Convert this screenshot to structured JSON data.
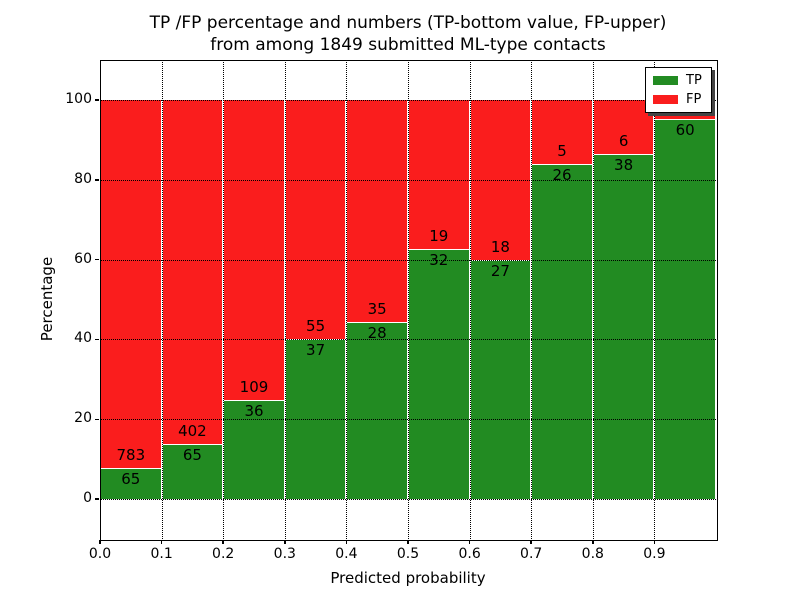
{
  "title": {
    "line1": "TP /FP percentage and numbers (TP-bottom value, FP-upper)",
    "line2": "from among 1849 submitted ML-type contacts"
  },
  "axes": {
    "xlabel": "Predicted probability",
    "ylabel": "Percentage"
  },
  "colors": {
    "tp_green": "#228b22",
    "fp_red": "#fa1d1d",
    "grid": "#000000",
    "bar_edge": "#ffffff",
    "spine": "#000000"
  },
  "legend": {
    "position": "upper right",
    "items": [
      {
        "label": "TP",
        "color": "#228b22"
      },
      {
        "label": "FP",
        "color": "#fa1d1d"
      }
    ]
  },
  "chart_data": {
    "type": "bar",
    "stacked": true,
    "normalized_to_percent": true,
    "title": "TP /FP percentage and numbers (TP-bottom value, FP-upper) from among 1849 submitted ML-type contacts",
    "xlabel": "Predicted probability",
    "ylabel": "Percentage",
    "xlim": [
      0.0,
      1.0
    ],
    "ylim": [
      -10,
      110
    ],
    "x_tick_labels": [
      "0.0",
      "0.1",
      "0.2",
      "0.3",
      "0.4",
      "0.5",
      "0.6",
      "0.7",
      "0.8",
      "0.9"
    ],
    "y_ticks": [
      0,
      20,
      40,
      60,
      80,
      100
    ],
    "grid": "dotted black, drawn above bars",
    "legend_position": "upper right",
    "total_contacts": 1849,
    "series": [
      {
        "name": "TP",
        "color": "#228b22",
        "stack_position": "bottom"
      },
      {
        "name": "FP",
        "color": "#fa1d1d",
        "stack_position": "top"
      }
    ],
    "bins": [
      {
        "range": [
          0.0,
          0.1
        ],
        "tp": 65,
        "fp": 783,
        "tp_pct": 7.7,
        "tp_label": "65",
        "fp_label": "783"
      },
      {
        "range": [
          0.1,
          0.2
        ],
        "tp": 65,
        "fp": 402,
        "tp_pct": 13.9,
        "tp_label": "65",
        "fp_label": "402"
      },
      {
        "range": [
          0.2,
          0.3
        ],
        "tp": 36,
        "fp": 109,
        "tp_pct": 24.8,
        "tp_label": "36",
        "fp_label": "109"
      },
      {
        "range": [
          0.3,
          0.4
        ],
        "tp": 37,
        "fp": 55,
        "tp_pct": 40.2,
        "tp_label": "37",
        "fp_label": "55"
      },
      {
        "range": [
          0.4,
          0.5
        ],
        "tp": 28,
        "fp": 35,
        "tp_pct": 44.4,
        "tp_label": "28",
        "fp_label": "35"
      },
      {
        "range": [
          0.5,
          0.6
        ],
        "tp": 32,
        "fp": 19,
        "tp_pct": 62.7,
        "tp_label": "32",
        "fp_label": "19"
      },
      {
        "range": [
          0.6,
          0.7
        ],
        "tp": 27,
        "fp": 18,
        "tp_pct": 60.0,
        "tp_label": "27",
        "fp_label": "18"
      },
      {
        "range": [
          0.7,
          0.8
        ],
        "tp": 26,
        "fp": 5,
        "tp_pct": 83.9,
        "tp_label": "26",
        "fp_label": "5"
      },
      {
        "range": [
          0.8,
          0.9
        ],
        "tp": 38,
        "fp": 6,
        "tp_pct": 86.4,
        "tp_label": "38",
        "fp_label": "6"
      },
      {
        "range": [
          0.9,
          1.0
        ],
        "tp": 60,
        "fp": 3,
        "tp_pct": 95.2,
        "tp_label": "60",
        "fp_label": ""
      }
    ]
  }
}
